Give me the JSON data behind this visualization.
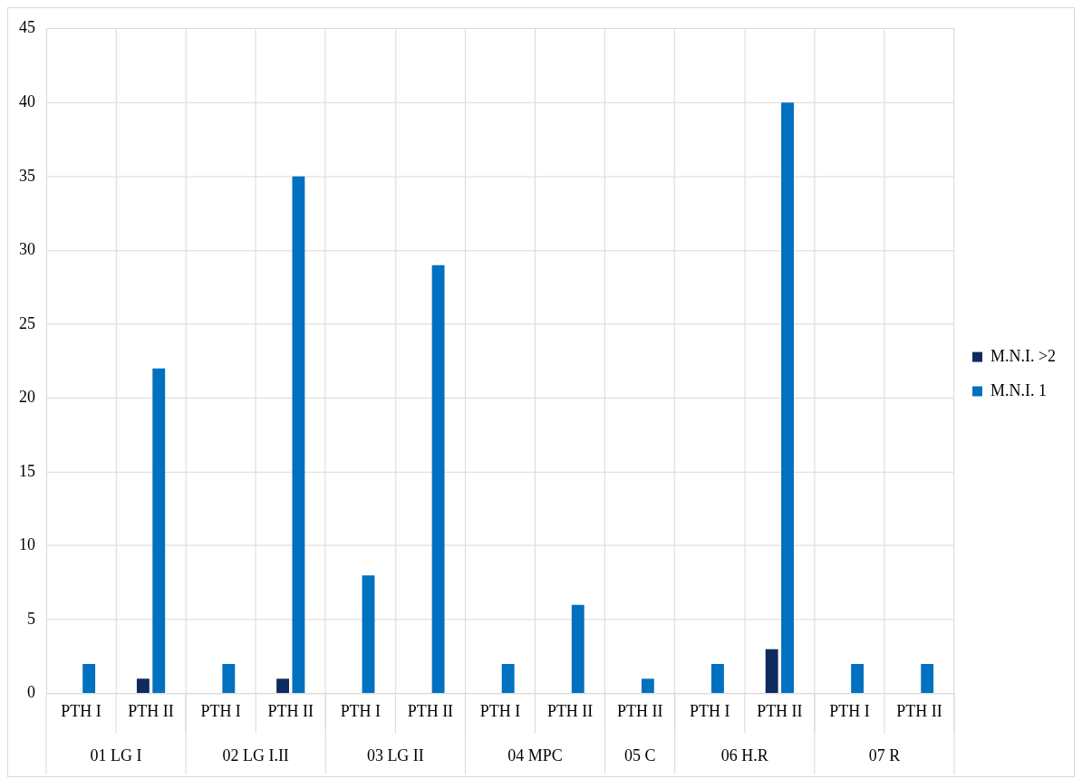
{
  "chart_data": {
    "type": "bar",
    "categories": [
      "PTH I",
      "PTH II",
      "PTH I",
      "PTH II",
      "PTH I",
      "PTH II",
      "PTH I",
      "PTH II",
      "PTH II",
      "PTH I",
      "PTH II",
      "PTH I",
      "PTH II"
    ],
    "annotations": [
      "01 LG I",
      "02 LG I.II",
      "03 LG II",
      "04 MPC",
      "05 C",
      "06 H.R",
      "07 R"
    ],
    "series": [
      {
        "name": "M.N.I. >2",
        "color": "#0e2a5e",
        "values": [
          null,
          1,
          null,
          1,
          null,
          null,
          null,
          null,
          null,
          null,
          3,
          null,
          null
        ]
      },
      {
        "name": "M.N.I. 1",
        "color": "#0070c0",
        "values": [
          2,
          22,
          2,
          35,
          8,
          29,
          2,
          6,
          1,
          2,
          40,
          2,
          2
        ]
      }
    ],
    "ylim": [
      0,
      45
    ],
    "yticks": [
      0,
      5,
      10,
      15,
      20,
      25,
      30,
      35,
      40,
      45
    ],
    "grid": true,
    "legend": "right"
  }
}
